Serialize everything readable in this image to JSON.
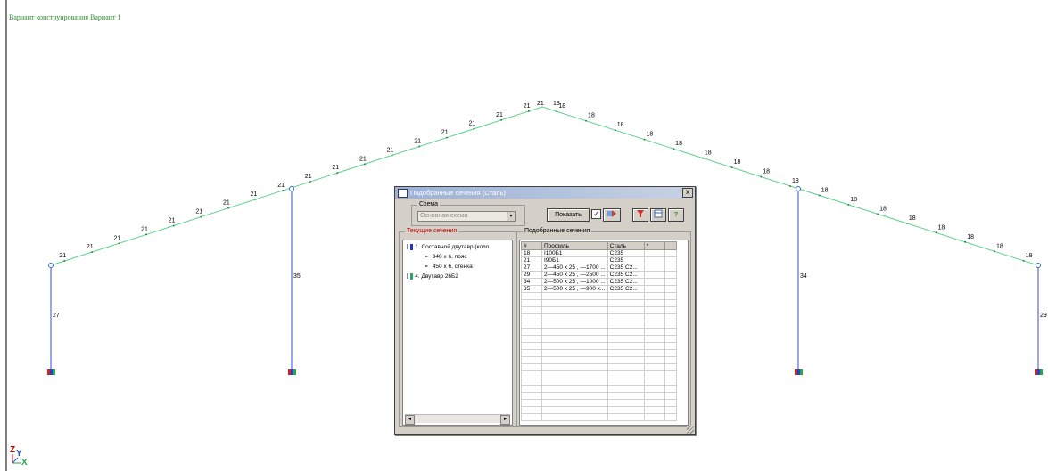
{
  "canvas": {
    "variant_title": "Вариант конструирования Вариант 1",
    "frames": [
      {
        "column_label": "27",
        "left_labels": [
          "21",
          "21",
          "21",
          "21",
          "21",
          "21",
          "21",
          "21",
          "21"
        ]
      },
      {
        "column_label": "35"
      },
      {
        "column_label": "34"
      },
      {
        "column_label": "29"
      }
    ],
    "rafter_left_labels": [
      "21",
      "21",
      "21",
      "21",
      "21",
      "21",
      "21",
      "21",
      "21",
      "21",
      "21",
      "21",
      "21",
      "21",
      "21",
      "21",
      "21",
      "21"
    ],
    "rafter_right_labels": [
      "18",
      "18",
      "18",
      "18",
      "18",
      "18",
      "18",
      "18",
      "18",
      "18",
      "18",
      "18",
      "18",
      "18",
      "18",
      "18",
      "18"
    ],
    "ridge_labels": [
      "21",
      "18"
    ],
    "axis": {
      "z": "Z",
      "y": "Y",
      "x": "X"
    },
    "colors": {
      "rafter": "#5fd18c",
      "column": "#3a4fd0",
      "node": "#3a6bd0",
      "label": "#000000"
    }
  },
  "dialog": {
    "title": "Подобранные сечения (Сталь)",
    "close_symbol": "x",
    "scheme_group": "Схема",
    "scheme_value": "Основная схема",
    "show_button": "Показать",
    "show_checked": "✓",
    "current_sections_group": "Текущие сечения",
    "tree": [
      {
        "label": "1. Составной двутавр (коло",
        "color": "#2233cc",
        "ibeam": "I"
      },
      {
        "label": "340 x 6, пояс",
        "sub": "="
      },
      {
        "label": "450 x 6, стенка",
        "sub": "="
      },
      {
        "label": "4. Двутавр 26Б2",
        "color": "#22aa66",
        "ibeam": "I"
      }
    ],
    "selected_group": "Подобранные сечения",
    "columns": [
      "#",
      "Профиль",
      "Сталь",
      "*"
    ],
    "rows": [
      [
        "18",
        "I100Б1",
        "С235",
        ""
      ],
      [
        "21",
        "I90Б1",
        "С235",
        ""
      ],
      [
        "27",
        "2—450 x 25 , —1700 ...",
        "С235 С2...",
        ""
      ],
      [
        "29",
        "2—450 x 25 , —2500 ...",
        "С235 С2...",
        ""
      ],
      [
        "34",
        "2—500 x 25 , —1000 ...",
        "С235 С2...",
        ""
      ],
      [
        "35",
        "2—500 x 25 , —900 x...",
        "С235 С2...",
        ""
      ]
    ],
    "empty_rows": 18,
    "toolbar_icons": [
      "filter-icon",
      "export-icon",
      "help-icon"
    ],
    "help_symbol": "?"
  }
}
